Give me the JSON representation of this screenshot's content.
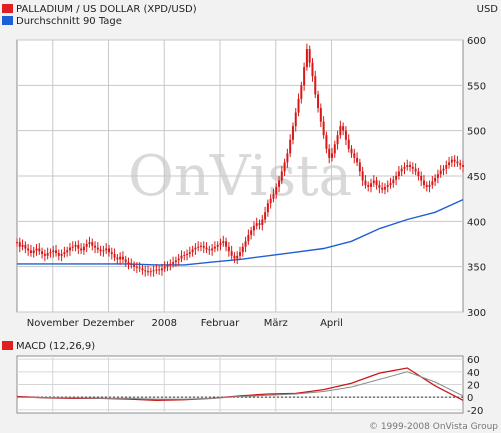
{
  "chart_data": [
    {
      "type": "candlestick",
      "title": "PALLADIUM / US DOLLAR (XPD/USD)",
      "currency": "USD",
      "legend": [
        {
          "name": "PALLADIUM / US DOLLAR (XPD/USD)",
          "color": "#e02020"
        },
        {
          "name": "Durchschnitt 90 Tage",
          "color": "#1f5fd6"
        }
      ],
      "x_tick_labels": [
        "November",
        "Dezember",
        "2008",
        "Februar",
        "März",
        "April"
      ],
      "y_ticks": [
        300,
        350,
        400,
        450,
        500,
        550,
        600
      ],
      "ylim": [
        300,
        600
      ],
      "grid": true,
      "legend_placement": "top-left",
      "watermark": "OnVista",
      "price_series": {
        "name": "PALLADIUM / US DOLLAR (XPD/USD)",
        "x": [
          0.0,
          0.05,
          0.1,
          0.15,
          0.2,
          0.25,
          0.3,
          0.35,
          0.4,
          0.45,
          0.5,
          0.55,
          0.6,
          0.65,
          0.7,
          0.75,
          0.8,
          0.85,
          0.9,
          0.95,
          1.0,
          1.05,
          1.1,
          1.15,
          1.2,
          1.25,
          1.3,
          1.35,
          1.4,
          1.45,
          1.5,
          1.55,
          1.6,
          1.65,
          1.7,
          1.75,
          1.8,
          1.85,
          1.9,
          1.95,
          2.0,
          2.05,
          2.1,
          2.15,
          2.2,
          2.25,
          2.3,
          2.35,
          2.4,
          2.45,
          2.5,
          2.55,
          2.6,
          2.65,
          2.7,
          2.75,
          2.8,
          2.85,
          2.9,
          2.95,
          3.0,
          3.05,
          3.1,
          3.15,
          3.2,
          3.25,
          3.3,
          3.35,
          3.4,
          3.45,
          3.5,
          3.55,
          3.6,
          3.65,
          3.7,
          3.75,
          3.8,
          3.85,
          3.9,
          3.95,
          4.0,
          4.05,
          4.1,
          4.15,
          4.2,
          4.25,
          4.3,
          4.35,
          4.4,
          4.45,
          4.5,
          4.55,
          4.6,
          4.65,
          4.7,
          4.75,
          4.8,
          4.85,
          4.9,
          4.95,
          5.0,
          5.05,
          5.1,
          5.15,
          5.2,
          5.25,
          5.3,
          5.35,
          5.4,
          5.45,
          5.5,
          5.55,
          5.6,
          5.65,
          5.7,
          5.75,
          5.8,
          5.85,
          5.9,
          5.95,
          6.0,
          6.05,
          6.1,
          6.15,
          6.2,
          6.25,
          6.3,
          6.35,
          6.4,
          6.45,
          6.5,
          6.55,
          6.6,
          6.65,
          6.7,
          6.75,
          6.8,
          6.85,
          6.9,
          6.95,
          7.0,
          7.05,
          7.1,
          7.15,
          7.2,
          7.25,
          7.3,
          7.35,
          7.4,
          7.45,
          7.5,
          7.55,
          7.6,
          7.65,
          7.7,
          7.75,
          7.8,
          7.85,
          7.9,
          7.95,
          8.0
        ],
        "values": [
          377,
          372,
          374,
          370,
          368,
          365,
          368,
          370,
          367,
          364,
          362,
          365,
          366,
          368,
          365,
          362,
          364,
          366,
          368,
          371,
          372,
          374,
          370,
          368,
          372,
          375,
          377,
          373,
          371,
          369,
          367,
          368,
          370,
          366,
          364,
          360,
          358,
          361,
          358,
          355,
          353,
          352,
          350,
          349,
          348,
          346,
          345,
          344,
          345,
          346,
          347,
          346,
          348,
          350,
          352,
          353,
          355,
          357,
          359,
          362,
          363,
          364,
          366,
          369,
          371,
          372,
          373,
          371,
          369,
          368,
          370,
          372,
          374,
          376,
          378,
          372,
          367,
          362,
          359,
          362,
          366,
          372,
          378,
          385,
          390,
          395,
          398,
          396,
          402,
          410,
          420,
          425,
          430,
          438,
          445,
          455,
          465,
          475,
          490,
          505,
          520,
          535,
          550,
          570,
          590,
          575,
          560,
          540,
          525,
          510,
          495,
          480,
          470,
          475,
          485,
          495,
          505,
          500,
          490,
          480,
          475,
          470,
          465,
          455,
          445,
          440,
          438,
          442,
          445,
          440,
          437,
          435,
          438,
          440,
          442,
          446,
          450,
          455,
          458,
          460,
          462,
          460,
          458,
          455,
          450,
          445,
          440,
          438,
          440,
          444,
          448,
          452,
          456,
          458,
          462,
          465,
          468,
          466,
          464,
          462,
          460
        ]
      },
      "ma_series": {
        "name": "Durchschnitt 90 Tage",
        "x": [
          0,
          0.5,
          1.0,
          1.5,
          2.0,
          2.5,
          3.0,
          3.5,
          4.0,
          4.5,
          5.0,
          5.5,
          6.0,
          6.5,
          7.0,
          7.5,
          8.0
        ],
        "values": [
          353,
          353,
          353,
          353,
          353,
          352,
          352,
          355,
          358,
          362,
          366,
          370,
          378,
          392,
          402,
          410,
          424
        ]
      }
    },
    {
      "type": "line",
      "title": "MACD (12,26,9)",
      "legend": [
        {
          "name": "MACD (12,26,9)",
          "color": "#e02020"
        }
      ],
      "y_ticks": [
        -20,
        0,
        20,
        40,
        60
      ],
      "ylim": [
        -25,
        65
      ],
      "grid": true,
      "series": [
        {
          "name": "MACD (12,26,9)",
          "x": [
            0,
            0.5,
            1.0,
            1.5,
            2.0,
            2.5,
            3.0,
            3.5,
            4.0,
            4.5,
            5.0,
            5.5,
            6.0,
            6.5,
            7.0,
            7.5,
            8.0
          ],
          "values": [
            1,
            -1,
            -2,
            -2,
            -3,
            -5,
            -4,
            -2,
            2,
            5,
            6,
            12,
            22,
            38,
            46,
            18,
            -5
          ]
        },
        {
          "name": "",
          "x": [
            0,
            0.5,
            1.0,
            1.5,
            2.0,
            2.5,
            3.0,
            3.5,
            4.0,
            4.5,
            5.0,
            5.5,
            6.0,
            6.5,
            7.0,
            7.5,
            8.0
          ],
          "values": [
            0,
            -1,
            -1,
            -2,
            -2,
            -3,
            -3,
            -2,
            1,
            3,
            5,
            9,
            16,
            28,
            40,
            24,
            2
          ]
        }
      ]
    }
  ],
  "footer": {
    "copyright": "© 1999-2008 OnVista Group"
  }
}
